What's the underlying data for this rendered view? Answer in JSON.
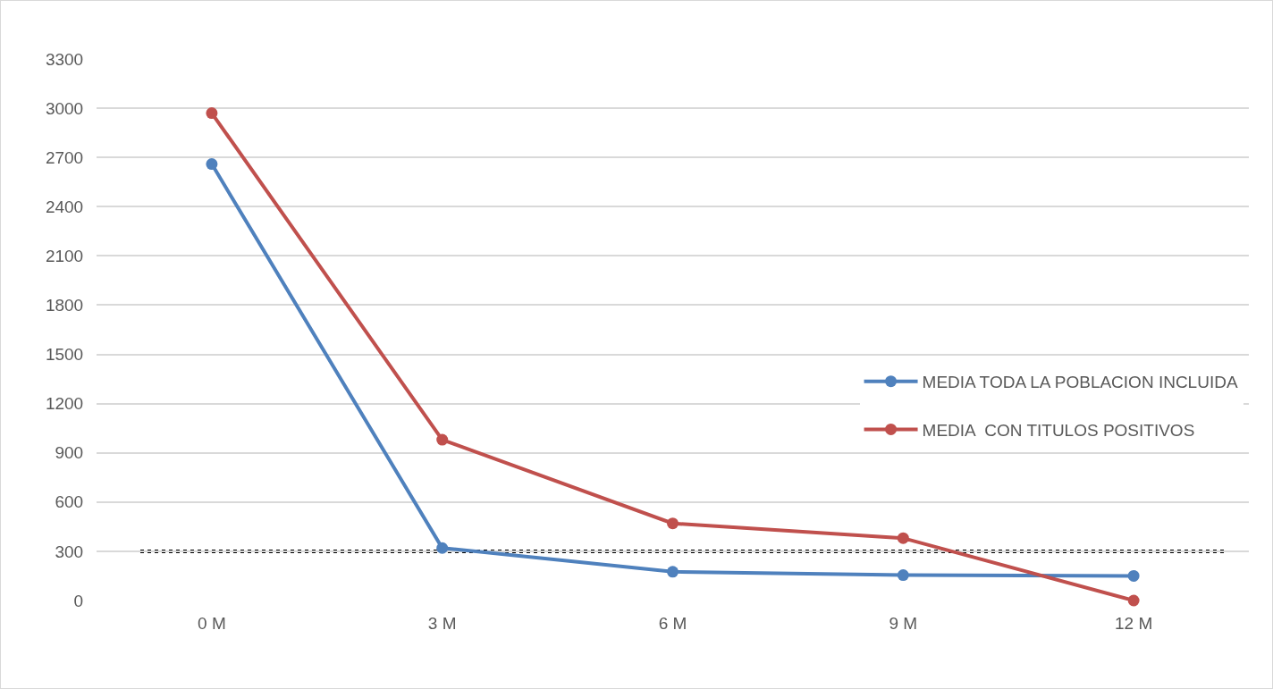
{
  "chart_data": {
    "type": "line",
    "categories": [
      "0 M",
      "3 M",
      "6 M",
      "9 M",
      "12 M"
    ],
    "series": [
      {
        "name": "MEDIA TODA LA POBLACION INCLUIDA",
        "color": "#4f81bd",
        "values": [
          2660,
          320,
          175,
          155,
          150
        ]
      },
      {
        "name": "MEDIA  CON TITULOS POSITIVOS",
        "color": "#c0504d",
        "values": [
          2970,
          980,
          470,
          380,
          0
        ]
      }
    ],
    "ylim": [
      0,
      3300
    ],
    "yticks": [
      0,
      300,
      600,
      900,
      1200,
      1500,
      1800,
      2100,
      2400,
      2700,
      3000,
      3300
    ],
    "ref_lines": [
      {
        "axis": "y",
        "value": 300,
        "color": "#000000",
        "line_style": "dotted"
      }
    ],
    "grid": "y",
    "legend": "right",
    "marker": "circle",
    "line_style": "solid"
  }
}
